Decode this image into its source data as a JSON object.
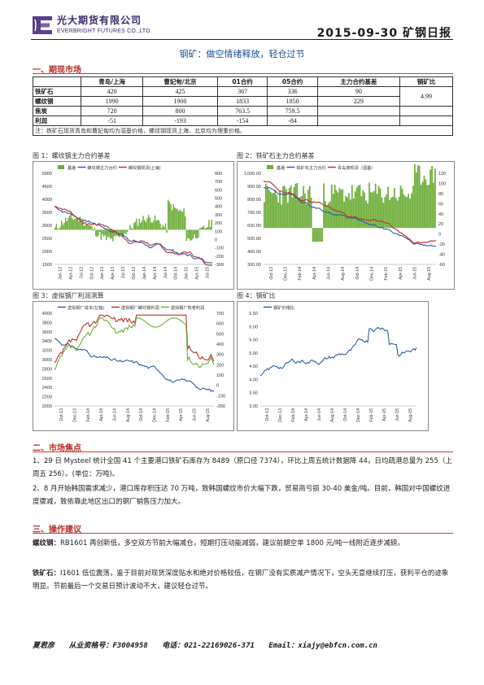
{
  "header": {
    "company_cn": "光大期货有限公司",
    "company_en": "EVERBRIGHT FUTURES CO.,LTD.",
    "date_title": "2015-09-30 矿钢日报",
    "logo_icon": "everbright-logo-icon"
  },
  "title": "钢矿：做空情绪释放，轻仓过节",
  "section1": "一、期现市场",
  "table": {
    "headers": [
      "",
      "青岛/上海",
      "曹妃甸/北京",
      "01合约",
      "05合约",
      "主力合约基差",
      "钢矿比"
    ],
    "rows": [
      {
        "label": "铁矿石",
        "cells": [
          "420",
          "425",
          "367",
          "336",
          "90"
        ]
      },
      {
        "label": "螺纹钢",
        "cells": [
          "1990",
          "1900",
          "1833",
          "1850",
          "229"
        ]
      },
      {
        "label": "焦炭",
        "cells": [
          "720",
          "800",
          "763.5",
          "759.5",
          ""
        ]
      },
      {
        "label": "利润",
        "cells": [
          "-51",
          "-193",
          "-154",
          "-84",
          ""
        ]
      }
    ],
    "ratio": "4.99",
    "note": "注：铁矿石现货青岛和曹妃甸均为湿基价格，螺纹钢现货上海、北京均为理重价格。"
  },
  "fig1": {
    "caption": "图 1：螺纹钢主力合约基差",
    "legend": [
      "基差",
      "螺纹钢主力合约",
      "螺纹钢现货(上海)"
    ],
    "y_left": [
      "5000",
      "4500",
      "4000",
      "3500",
      "3000",
      "2500",
      "2000",
      "1500"
    ],
    "y_right": [
      "800",
      "700",
      "600",
      "500",
      "400",
      "300",
      "200",
      "100",
      "0",
      "-100",
      "-200",
      "-300"
    ],
    "x_ticks": [
      "Jan-12",
      "Apr-12",
      "Jul-12",
      "Oct-12",
      "Jan-13",
      "Apr-13",
      "Jul-13",
      "Oct-13",
      "Jan-14",
      "Apr-14",
      "Jul-14",
      "Oct-14",
      "Jan-15",
      "Apr-15",
      "Jul-15"
    ]
  },
  "fig2": {
    "caption": "图 2：铁矿石主力合约基差",
    "legend": [
      "基差",
      "铁矿石主力合约",
      "青岛港现货（湿基）"
    ],
    "y_left": [
      "1,000.00",
      "900.00",
      "800.00",
      "700.00",
      "600.00",
      "500.00",
      "400.00",
      "300.00"
    ],
    "y_right": [
      "120",
      "100",
      "80",
      "60",
      "40",
      "20",
      "0",
      "-20",
      "-40",
      "-60"
    ],
    "x_ticks": [
      "Oct-13",
      "Dec-13",
      "Feb-14",
      "Apr-14",
      "Jun-14",
      "Aug-14",
      "Oct-14",
      "Dec-14",
      "Feb-15",
      "Apr-15",
      "Jun-15",
      "Aug-15"
    ]
  },
  "fig3": {
    "caption": "图 3：虚拟钢厂利润测算",
    "legend": [
      "虚拟钢厂成本(左轴)",
      "虚拟钢厂螺纹钢利润",
      "虚拟钢厂热卷利润"
    ],
    "y_left": [
      "4000",
      "3800",
      "3600",
      "3400",
      "3200",
      "3000",
      "2800",
      "2600",
      "2400",
      "2200",
      "2000"
    ],
    "y_right": [
      "700",
      "600",
      "500",
      "400",
      "300",
      "200",
      "100",
      "0",
      "-100",
      "-200"
    ],
    "x_ticks": [
      "Oct-13",
      "Dec-13",
      "Feb-14",
      "Apr-14",
      "Jun-14",
      "Aug-14",
      "Oct-14",
      "Dec-14",
      "Feb-15",
      "Apr-15",
      "Jun-15",
      "Aug-15"
    ]
  },
  "fig4": {
    "caption": "图 4：钢矿比",
    "legend": [
      "钢矿价格比"
    ],
    "y_left": [
      "6.50",
      "6.00",
      "5.50",
      "5.00",
      "4.50",
      "4.00",
      "3.50",
      "3.00"
    ],
    "x_ticks": [
      "Oct-13",
      "Dec-13",
      "Feb-14",
      "Apr-14",
      "Jun-14",
      "Aug-14",
      "Oct-14",
      "Dec-14",
      "Feb-15",
      "Apr-15",
      "Jun-15",
      "Aug-15"
    ]
  },
  "section2": "二、市场焦点",
  "focus": [
    "1、29 日 Mysteel 统计全国 41 个主要港口铁矿石库存为 8489（原口径 7374），环比上周五统计数据降 44，日均疏港总量为 255（上周五 256）。(单位：万吨)。",
    "2、8 月开始韩国需求减少，港口库存积压达 70 万吨，致韩国螺纹市价大幅下跌，贸易商亏损 30-40 美金/吨。目前，韩国对中国螺纹进度骤减，致依靠此地区出口的钢厂销售压力加大。"
  ],
  "section3": "三、操作建议",
  "advice": [
    {
      "label": "螺纹钢：",
      "text": "RB1601 再创新低，多空双方节前大幅减仓，短期打压动能减弱，建议前期空单 1800 元/吨一线附近逐步减磅。"
    },
    {
      "label": "铁矿石：",
      "text": "I1601 低位震荡，鉴于目前对现货深度贴水和绝对价格较低，在钢厂没有实质减产情况下，空头无意继续打压，获利平仓的迹象明显。节前最后一个交易日预计波动不大，建议轻仓过节。"
    }
  ],
  "footer": {
    "name": "夏君彦",
    "license": "从业资格号：F3004958",
    "phone": "电话：021-22169026-371",
    "email": "Email：xiajy@ebfcn.com.cn"
  },
  "colors": {
    "accent": "#b72a2a",
    "title": "#1c4f95",
    "bar_green": "#6fae3a",
    "line_blue": "#2b5ea8",
    "line_red": "#c0302c"
  }
}
